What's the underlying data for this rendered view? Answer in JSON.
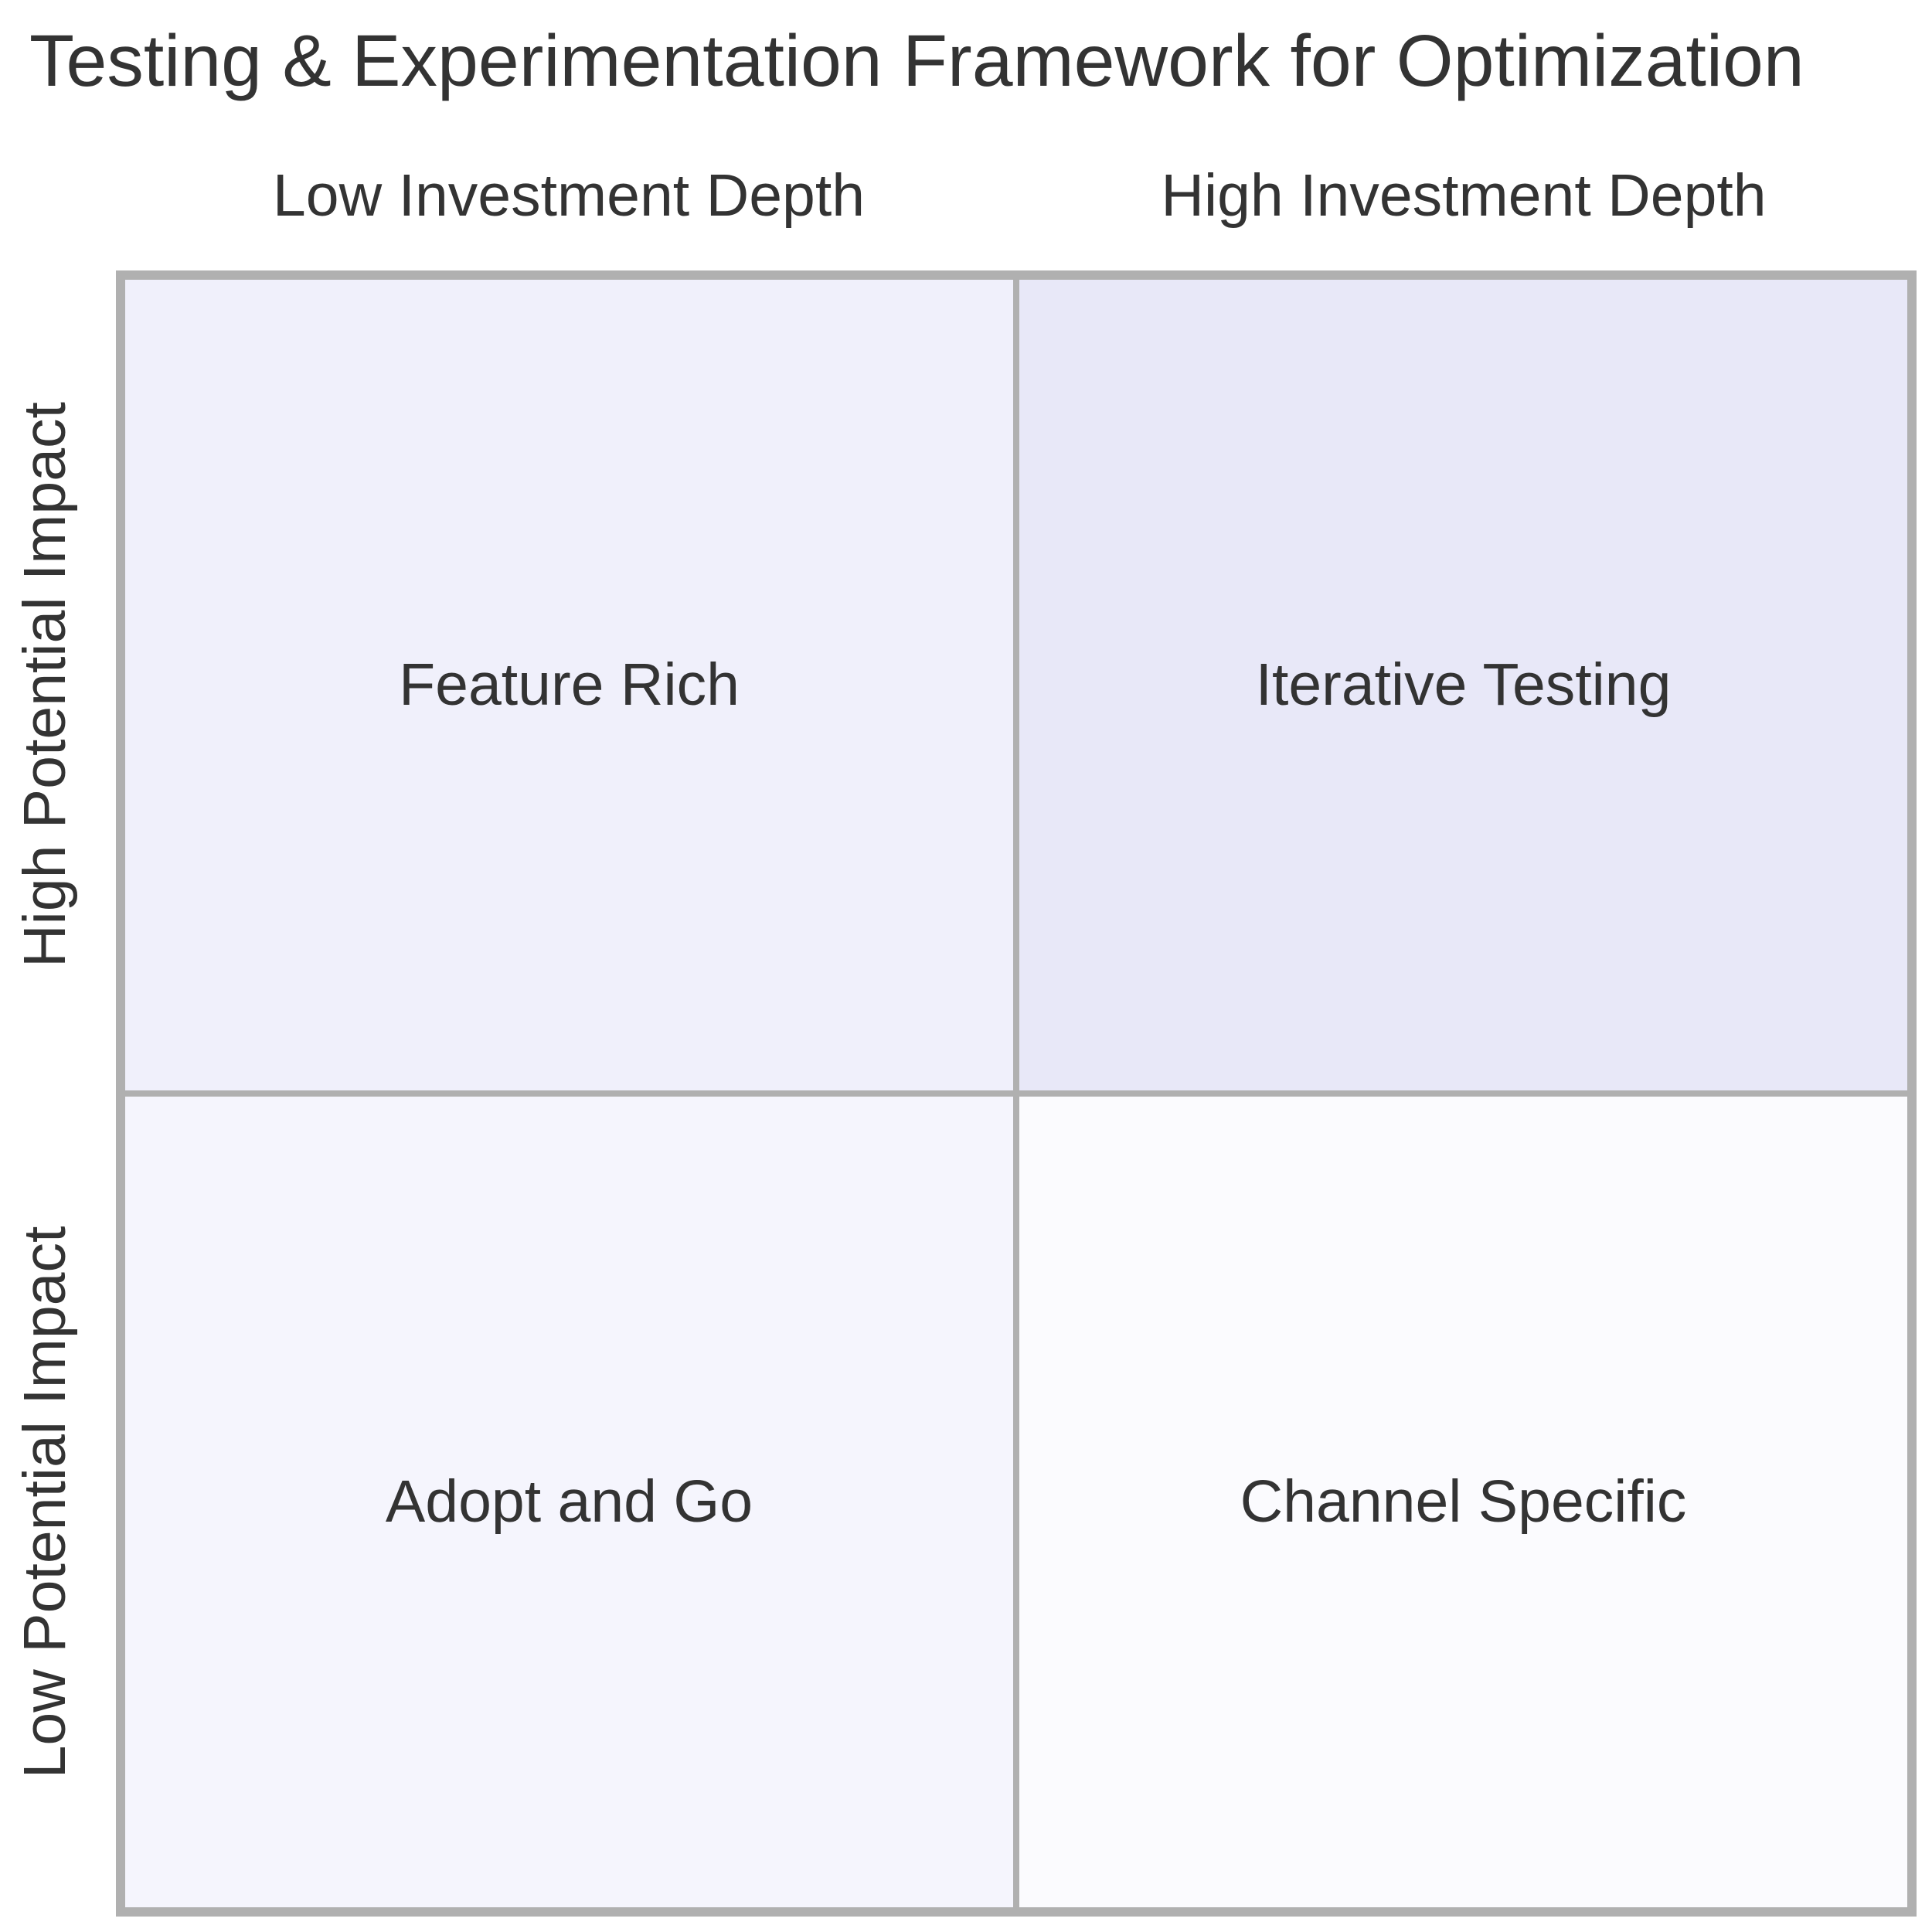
{
  "title": "Testing & Experimentation Framework for Optimization",
  "x_axis": {
    "left_label": "Low Investment Depth",
    "right_label": "High Investment Depth"
  },
  "y_axis": {
    "top_label": "High Potential Impact",
    "bottom_label": "Low Potential Impact"
  },
  "quadrants": {
    "top_left": {
      "label": "Feature Rich",
      "fill": "#f0f0fb"
    },
    "top_right": {
      "label": "Iterative Testing",
      "fill": "#e8e8f8"
    },
    "bottom_left": {
      "label": "Adopt and Go",
      "fill": "#f5f5fd"
    },
    "bottom_right": {
      "label": "Channel Specific",
      "fill": "#fbfbfe"
    }
  },
  "colors": {
    "border": "#b0b0b0",
    "text": "#333333"
  }
}
